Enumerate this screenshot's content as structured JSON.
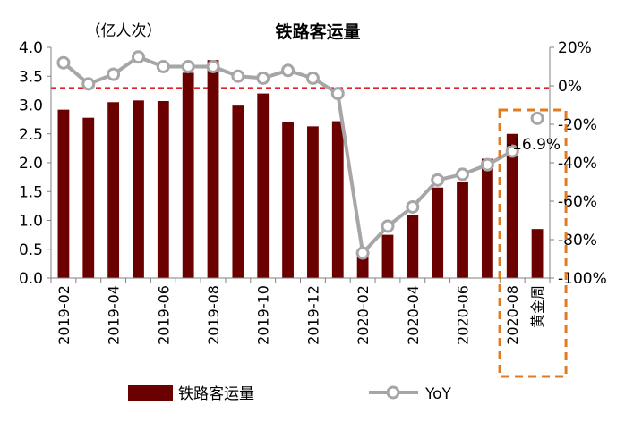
{
  "chart_data": {
    "type": "bar+line",
    "title": "铁路客运量",
    "unit_label": "（亿人次）",
    "categories": [
      "2019-02",
      "2019-03",
      "2019-04",
      "2019-05",
      "2019-06",
      "2019-07",
      "2019-08",
      "2019-09",
      "2019-10",
      "2019-11",
      "2019-12",
      "2020-01",
      "2020-02",
      "2020-03",
      "2020-04",
      "2020-05",
      "2020-06",
      "2020-07",
      "2020-08",
      "黄金周"
    ],
    "x_tick_labels": [
      "2019-02",
      "2019-04",
      "2019-06",
      "2019-08",
      "2019-10",
      "2019-12",
      "2020-02",
      "2020-04",
      "2020-06",
      "2020-08",
      "黄金周"
    ],
    "series": [
      {
        "name": "铁路客运量",
        "type": "bar",
        "axis": "left",
        "color": "#6b0000",
        "values": [
          2.92,
          2.78,
          3.05,
          3.08,
          3.07,
          3.56,
          3.78,
          2.99,
          3.2,
          2.71,
          2.63,
          2.72,
          0.45,
          0.75,
          1.1,
          1.57,
          1.66,
          2.07,
          2.5,
          0.85
        ]
      },
      {
        "name": "YoY",
        "type": "line",
        "axis": "right",
        "color": "#a6a6a6",
        "values": [
          12,
          1,
          6,
          15,
          10,
          10,
          10,
          5,
          4,
          8,
          4,
          -4,
          -87,
          -73,
          -63,
          -49,
          -46,
          -41,
          -34,
          -16.9
        ]
      }
    ],
    "y_left": {
      "min": 0,
      "max": 4.0,
      "ticks": [
        "0.0",
        "0.5",
        "1.0",
        "1.5",
        "2.0",
        "2.5",
        "3.0",
        "3.5",
        "4.0"
      ]
    },
    "y_right": {
      "min": -100,
      "max": 20,
      "ticks": [
        "-100%",
        "-80%",
        "-60%",
        "-40%",
        "-20%",
        "0%",
        "20%"
      ]
    },
    "reference_line": {
      "axis": "right",
      "value": -1,
      "color": "#e0202a",
      "style": "dashed"
    },
    "annotation": {
      "text": "-16.9%"
    },
    "highlight_box": {
      "category": "黄金周",
      "color": "#e07b20",
      "style": "dashed"
    },
    "legend": {
      "position": "bottom"
    }
  }
}
